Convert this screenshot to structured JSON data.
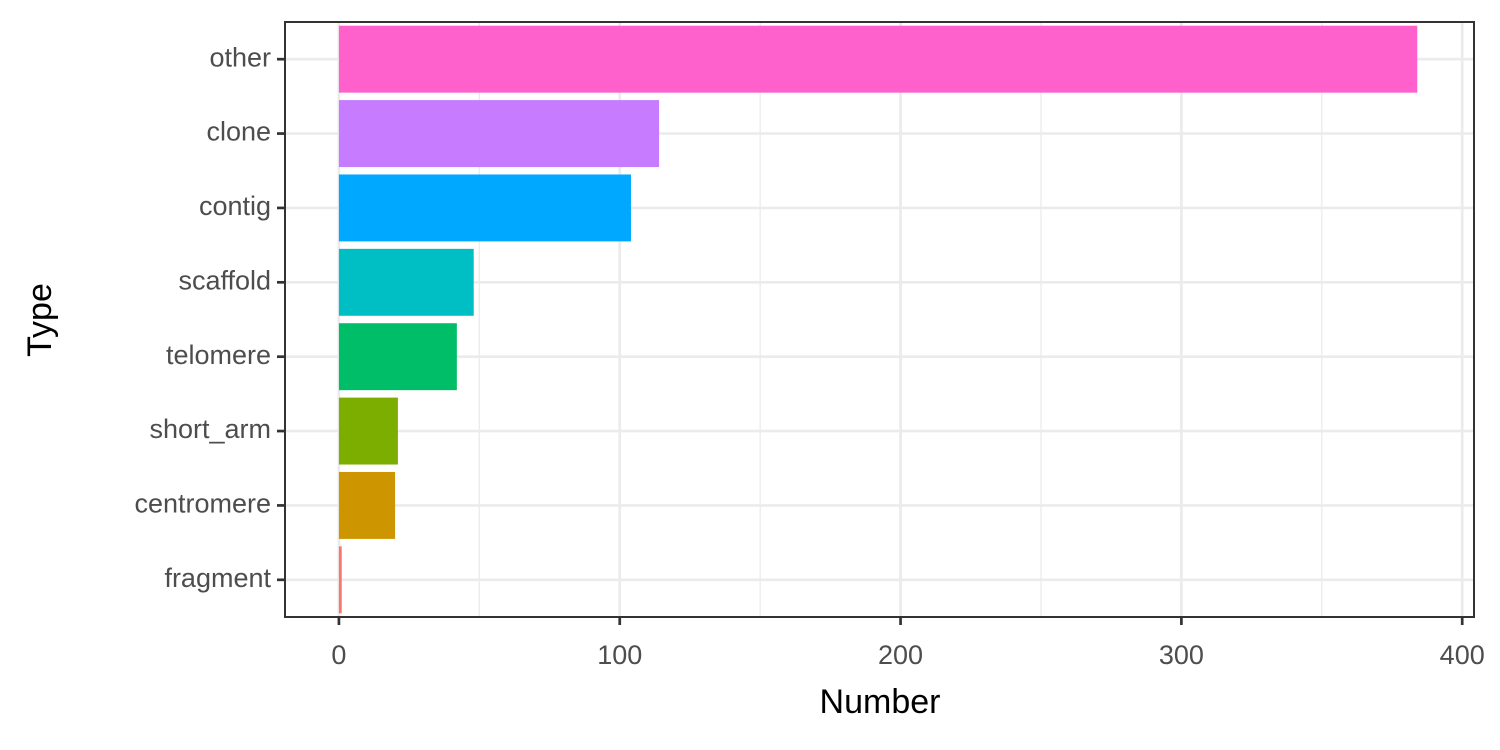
{
  "chart_data": {
    "type": "bar",
    "orientation": "horizontal",
    "xlabel": "Number",
    "ylabel": "Type",
    "categories": [
      "other",
      "clone",
      "contig",
      "scaffold",
      "telomere",
      "short_arm",
      "centromere",
      "fragment"
    ],
    "values": [
      384,
      114,
      104,
      48,
      42,
      21,
      20,
      1
    ],
    "colors": [
      "#FF61CC",
      "#C77CFF",
      "#00A9FF",
      "#00BFC4",
      "#00BE67",
      "#7CAE00",
      "#CD9600",
      "#F8766D"
    ],
    "xlim": [
      -19.2,
      404.2
    ],
    "xticks": [
      0,
      100,
      200,
      300,
      400
    ],
    "xminor": [
      50,
      150,
      250,
      350
    ],
    "grid": true
  }
}
